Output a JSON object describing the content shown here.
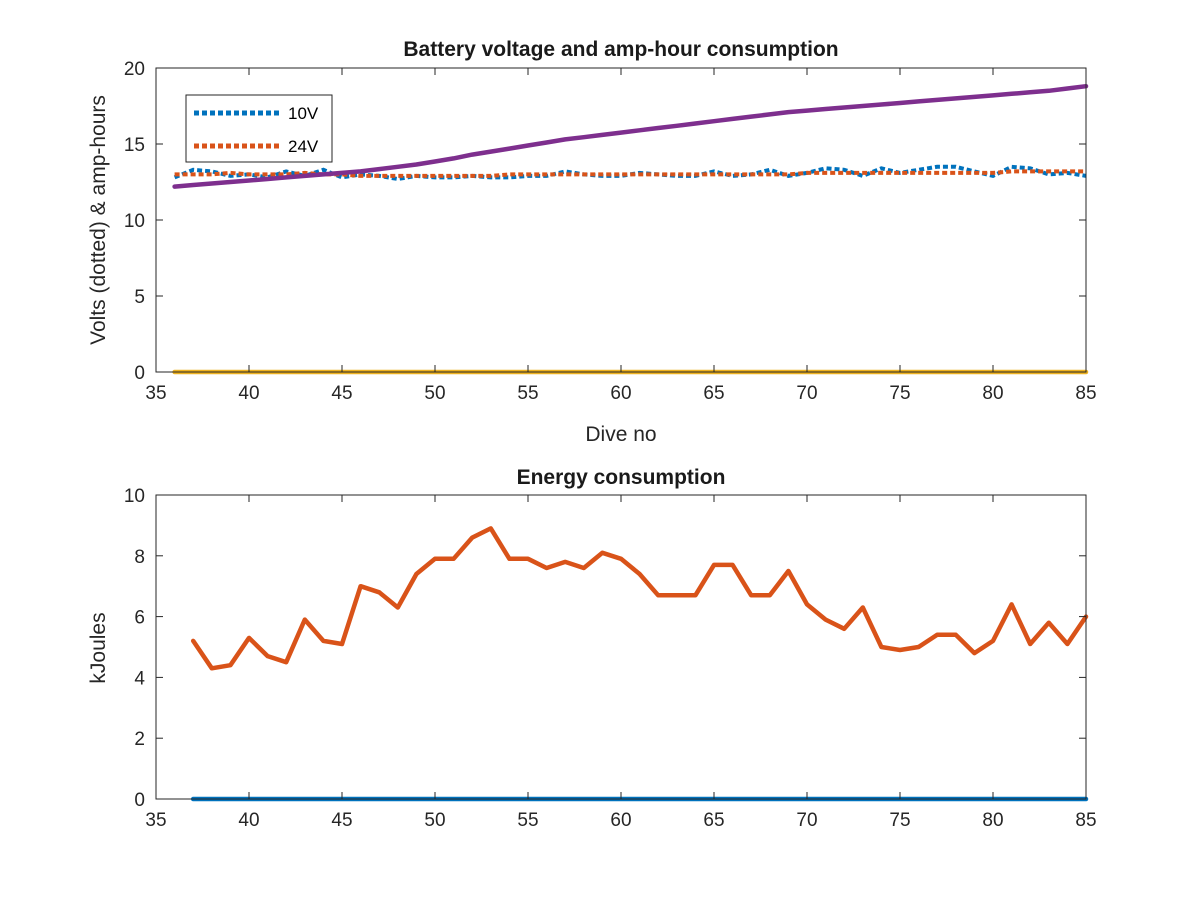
{
  "chart_data": [
    {
      "type": "line",
      "title": "Battery voltage and amp-hour consumption",
      "xlabel": "Dive no",
      "ylabel": "Volts (dotted) & amp-hours",
      "xlim": [
        35,
        85
      ],
      "ylim": [
        0,
        20
      ],
      "xticks": [
        "35",
        "40",
        "45",
        "50",
        "55",
        "60",
        "65",
        "70",
        "75",
        "80",
        "85"
      ],
      "yticks": [
        "0",
        "5",
        "10",
        "15",
        "20"
      ],
      "grid": false,
      "legend": {
        "position": "top-left",
        "entries": [
          "10V",
          "24V"
        ]
      },
      "x": [
        36,
        37,
        38,
        39,
        40,
        41,
        42,
        43,
        44,
        45,
        46,
        47,
        48,
        49,
        50,
        51,
        52,
        53,
        54,
        55,
        56,
        57,
        58,
        59,
        60,
        61,
        62,
        63,
        64,
        65,
        66,
        67,
        68,
        69,
        70,
        71,
        72,
        73,
        74,
        75,
        76,
        77,
        78,
        79,
        80,
        81,
        82,
        83,
        84,
        85
      ],
      "series": [
        {
          "name": "10V",
          "color": "#0072BD",
          "style": "dotted",
          "values": [
            12.8,
            13.3,
            13.2,
            12.9,
            13.0,
            12.8,
            13.2,
            12.9,
            13.3,
            12.8,
            13.0,
            12.9,
            12.7,
            12.9,
            12.8,
            12.8,
            12.9,
            12.8,
            12.8,
            12.9,
            12.9,
            13.2,
            13.0,
            12.9,
            12.9,
            13.1,
            13.0,
            12.9,
            12.9,
            13.2,
            12.9,
            13.0,
            13.3,
            12.9,
            13.1,
            13.4,
            13.3,
            12.9,
            13.4,
            13.1,
            13.3,
            13.5,
            13.5,
            13.2,
            12.9,
            13.5,
            13.4,
            13.0,
            13.1,
            12.9
          ]
        },
        {
          "name": "24V",
          "color": "#D95319",
          "style": "dotted",
          "values": [
            13.0,
            13.0,
            13.0,
            13.1,
            13.0,
            13.0,
            13.0,
            13.1,
            13.0,
            13.0,
            12.9,
            12.9,
            12.9,
            12.9,
            12.9,
            12.9,
            12.9,
            12.9,
            13.0,
            13.0,
            13.0,
            13.0,
            13.0,
            13.0,
            13.0,
            13.0,
            13.0,
            13.0,
            13.0,
            13.0,
            13.0,
            13.0,
            13.0,
            13.0,
            13.1,
            13.1,
            13.1,
            13.1,
            13.1,
            13.1,
            13.1,
            13.1,
            13.1,
            13.1,
            13.1,
            13.2,
            13.2,
            13.2,
            13.2,
            13.2
          ]
        },
        {
          "color": "#7E2F8E",
          "style": "solid",
          "values": [
            12.2,
            12.3,
            12.4,
            12.5,
            12.6,
            12.7,
            12.8,
            12.9,
            13.0,
            13.1,
            13.2,
            13.35,
            13.5,
            13.65,
            13.85,
            14.05,
            14.3,
            14.5,
            14.7,
            14.9,
            15.1,
            15.3,
            15.45,
            15.6,
            15.75,
            15.9,
            16.05,
            16.2,
            16.35,
            16.5,
            16.65,
            16.8,
            16.95,
            17.1,
            17.2,
            17.3,
            17.4,
            17.5,
            17.6,
            17.7,
            17.8,
            17.9,
            18.0,
            18.1,
            18.2,
            18.3,
            18.4,
            18.5,
            18.65,
            18.8
          ]
        },
        {
          "color": "#EDB120",
          "style": "solid",
          "values": [
            0,
            0,
            0,
            0,
            0,
            0,
            0,
            0,
            0,
            0,
            0,
            0,
            0,
            0,
            0,
            0,
            0,
            0,
            0,
            0,
            0,
            0,
            0,
            0,
            0,
            0,
            0,
            0,
            0,
            0,
            0,
            0,
            0,
            0,
            0,
            0,
            0,
            0,
            0,
            0,
            0,
            0,
            0,
            0,
            0,
            0,
            0,
            0,
            0,
            0
          ]
        }
      ]
    },
    {
      "type": "line",
      "title": "Energy consumption",
      "xlabel": "",
      "ylabel": "kJoules",
      "xlim": [
        35,
        85
      ],
      "ylim": [
        0,
        10
      ],
      "xticks": [
        "35",
        "40",
        "45",
        "50",
        "55",
        "60",
        "65",
        "70",
        "75",
        "80",
        "85"
      ],
      "yticks": [
        "0",
        "2",
        "4",
        "6",
        "8",
        "10"
      ],
      "grid": false,
      "x": [
        37,
        38,
        39,
        40,
        41,
        42,
        43,
        44,
        45,
        46,
        47,
        48,
        49,
        50,
        51,
        52,
        53,
        54,
        55,
        56,
        57,
        58,
        59,
        60,
        61,
        62,
        63,
        64,
        65,
        66,
        67,
        68,
        69,
        70,
        71,
        72,
        73,
        74,
        75,
        76,
        77,
        78,
        79,
        80,
        81,
        82,
        83,
        84,
        85
      ],
      "series": [
        {
          "color": "#D95319",
          "style": "solid",
          "values": [
            5.2,
            4.3,
            4.4,
            5.3,
            4.7,
            4.5,
            5.9,
            5.2,
            5.1,
            7.0,
            6.8,
            6.3,
            7.4,
            7.9,
            7.9,
            8.6,
            8.9,
            7.9,
            7.9,
            7.6,
            7.8,
            7.6,
            8.1,
            7.9,
            7.4,
            6.7,
            6.7,
            6.7,
            7.7,
            7.7,
            6.7,
            6.7,
            7.5,
            6.4,
            5.9,
            5.6,
            6.3,
            5.0,
            4.9,
            5.0,
            5.4,
            5.4,
            4.8,
            5.2,
            6.4,
            5.1,
            5.8,
            5.1,
            6.0
          ]
        },
        {
          "color": "#0072BD",
          "style": "solid",
          "values": [
            0,
            0,
            0,
            0,
            0,
            0,
            0,
            0,
            0,
            0,
            0,
            0,
            0,
            0,
            0,
            0,
            0,
            0,
            0,
            0,
            0,
            0,
            0,
            0,
            0,
            0,
            0,
            0,
            0,
            0,
            0,
            0,
            0,
            0,
            0,
            0,
            0,
            0,
            0,
            0,
            0,
            0,
            0,
            0,
            0,
            0,
            0,
            0,
            0
          ]
        }
      ]
    }
  ]
}
